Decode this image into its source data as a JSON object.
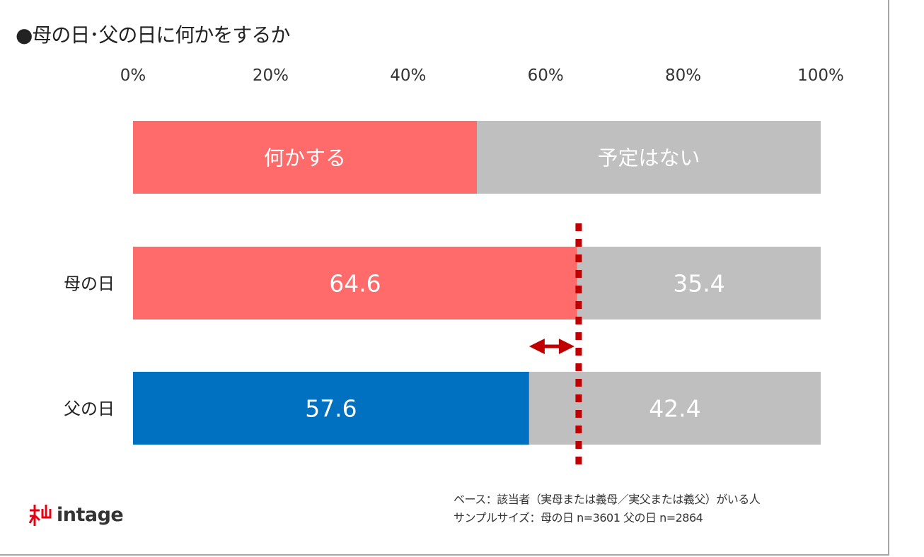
{
  "chart_data": {
    "type": "bar",
    "orientation": "horizontal",
    "stacked": true,
    "title": "●母の日･父の日に何かをするか",
    "xlim": [
      0,
      100
    ],
    "x_ticks": [
      "0%",
      "20%",
      "40%",
      "60%",
      "80%",
      "100%"
    ],
    "legend": {
      "position": "top",
      "entries": [
        "何かする",
        "予定はない"
      ],
      "legend_fraction": 50
    },
    "categories": [
      "母の日",
      "父の日"
    ],
    "series": [
      {
        "name": "何かする",
        "values": [
          64.6,
          57.6
        ],
        "colors": [
          "#ff6b6b",
          "#0070c0"
        ]
      },
      {
        "name": "予定はない",
        "values": [
          35.4,
          42.4
        ],
        "color": "#bfbfbf"
      }
    ],
    "reference_line": {
      "value": 64.6,
      "color": "#c00000",
      "style": "dotted"
    },
    "annotation": "double-arrow",
    "grid": false
  },
  "notes": {
    "line1": "ベース：該当者（実母または義母／実父または義父）がいる人",
    "line2": "サンプルサイズ：母の日 n=3601 父の日 n=2864"
  },
  "logo": {
    "text": "intage",
    "color": "#e60012"
  }
}
